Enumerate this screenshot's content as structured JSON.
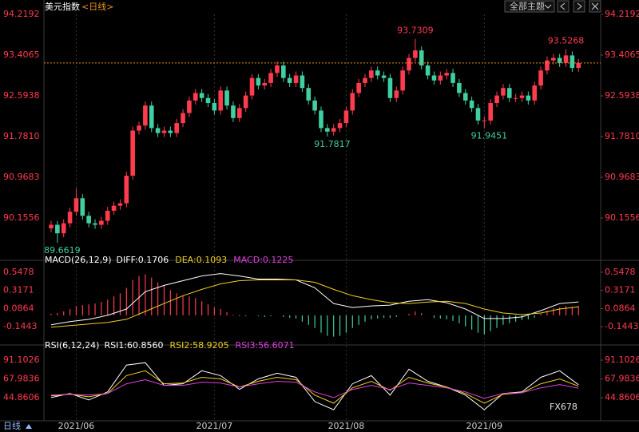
{
  "header": {
    "title": "美元指数",
    "period": "<日线>",
    "theme_button": "全部主题"
  },
  "footer": {
    "period": "日线",
    "watermark": "FX678"
  },
  "chart_data": [
    {
      "type": "candlestick",
      "open": [
        89.95,
        90.02,
        89.85,
        90.05,
        90.28,
        90.55,
        90.2,
        90.05,
        90.02,
        90.1,
        90.3,
        90.4,
        90.45,
        91.0,
        91.9,
        92.0,
        92.4,
        91.95,
        91.85,
        91.9,
        91.85,
        92.05,
        92.25,
        92.5,
        92.65,
        92.55,
        92.45,
        92.3,
        92.7,
        92.4,
        92.15,
        92.35,
        92.6,
        92.95,
        92.8,
        92.85,
        93.05,
        93.2,
        92.95,
        92.85,
        93.0,
        92.75,
        92.5,
        92.3,
        91.95,
        91.88,
        91.95,
        92.05,
        92.3,
        92.65,
        92.85,
        92.95,
        93.1,
        93.0,
        92.95,
        92.55,
        92.7,
        93.1,
        93.35,
        93.5,
        93.2,
        93.0,
        92.9,
        93.0,
        93.05,
        92.85,
        92.65,
        92.5,
        92.35,
        92.1,
        92.1,
        92.45,
        92.6,
        92.75,
        92.55,
        92.55,
        92.6,
        92.5,
        92.8,
        93.1,
        93.3,
        93.35,
        93.25,
        93.4,
        93.15
      ],
      "high": [
        90.1,
        90.1,
        90.13,
        90.36,
        90.75,
        90.63,
        90.28,
        90.13,
        90.18,
        90.38,
        90.48,
        90.53,
        91.08,
        91.98,
        92.08,
        92.48,
        92.48,
        92.03,
        91.98,
        91.98,
        92.13,
        92.33,
        92.58,
        92.73,
        92.73,
        92.63,
        92.53,
        92.78,
        92.78,
        92.48,
        92.43,
        92.68,
        93.03,
        93.03,
        92.93,
        93.13,
        93.28,
        93.28,
        93.03,
        93.08,
        93.08,
        92.83,
        92.58,
        92.38,
        92.03,
        92.03,
        92.13,
        92.38,
        92.73,
        92.93,
        93.03,
        93.18,
        93.18,
        93.08,
        93.03,
        92.78,
        93.18,
        93.43,
        93.7309,
        93.58,
        93.28,
        93.08,
        93.08,
        93.13,
        93.13,
        92.93,
        92.73,
        92.58,
        92.43,
        92.18,
        92.53,
        92.68,
        92.83,
        92.83,
        92.63,
        92.68,
        92.68,
        92.88,
        93.18,
        93.38,
        93.43,
        93.43,
        93.5268,
        93.48,
        93.33
      ],
      "low": [
        89.87,
        89.6619,
        89.77,
        89.97,
        90.2,
        90.12,
        89.97,
        89.94,
        89.94,
        90.02,
        90.22,
        90.32,
        90.37,
        90.92,
        91.82,
        91.92,
        91.87,
        91.77,
        91.77,
        91.77,
        91.77,
        91.97,
        92.17,
        92.42,
        92.47,
        92.37,
        92.22,
        92.22,
        92.32,
        92.07,
        92.07,
        92.27,
        92.52,
        92.72,
        92.72,
        92.77,
        92.97,
        92.87,
        92.77,
        92.77,
        92.67,
        92.42,
        92.22,
        91.87,
        91.7817,
        91.8,
        91.87,
        91.97,
        92.22,
        92.57,
        92.77,
        92.87,
        92.92,
        92.87,
        92.47,
        92.47,
        92.62,
        93.02,
        93.27,
        93.12,
        92.92,
        92.82,
        92.82,
        92.92,
        92.77,
        92.57,
        92.42,
        92.27,
        92.02,
        91.9451,
        92.02,
        92.37,
        92.52,
        92.47,
        92.47,
        92.47,
        92.42,
        92.42,
        92.72,
        93.02,
        93.22,
        93.17,
        93.17,
        93.07,
        93.07
      ],
      "close": [
        90.02,
        89.85,
        90.05,
        90.28,
        90.55,
        90.2,
        90.05,
        90.02,
        90.1,
        90.3,
        90.4,
        90.45,
        91.0,
        91.9,
        92.0,
        92.4,
        91.95,
        91.85,
        91.9,
        91.85,
        92.05,
        92.25,
        92.5,
        92.65,
        92.55,
        92.45,
        92.3,
        92.7,
        92.4,
        92.15,
        92.35,
        92.6,
        92.95,
        92.8,
        92.85,
        93.05,
        93.2,
        92.95,
        92.85,
        93.0,
        92.75,
        92.5,
        92.3,
        91.95,
        91.88,
        91.95,
        92.05,
        92.3,
        92.65,
        92.85,
        92.95,
        93.1,
        93.0,
        92.95,
        92.55,
        92.7,
        93.1,
        93.35,
        93.5,
        93.2,
        93.0,
        92.9,
        93.0,
        93.05,
        92.85,
        92.65,
        92.5,
        92.35,
        92.1,
        92.1,
        92.45,
        92.6,
        92.75,
        92.55,
        92.55,
        92.6,
        92.5,
        92.8,
        93.1,
        93.3,
        93.35,
        93.25,
        93.4,
        93.15,
        93.25
      ],
      "up_color": "#ff3b4e",
      "down_color": "#3fcfa0",
      "ylim": [
        89.4066,
        94.3467
      ],
      "yticks": [
        94.2192,
        93.4065,
        92.5938,
        {
          "value": 91.781,
          "label": "91.7810"
        },
        90.9683,
        90.1556
      ],
      "tick_color": "#ff3b4e",
      "last_line_color": "#e8901c",
      "x_labels": [
        {
          "index": 4,
          "label": "2021/06"
        },
        {
          "index": 26,
          "label": "2021/07"
        },
        {
          "index": 47,
          "label": "2021/08"
        },
        {
          "index": 69,
          "label": "2021/09"
        }
      ]
    },
    {
      "type": "macd",
      "legend_title": "MACD(26,12,9)",
      "ylim": [
        -0.335,
        0.658
      ],
      "yticks": [
        0.5478,
        0.3171,
        0.0864,
        -0.1443
      ],
      "tick_color": "#ff3b4e",
      "x": [
        0,
        3,
        6,
        9,
        12,
        15,
        18,
        21,
        24,
        27,
        30,
        33,
        36,
        39,
        42,
        45,
        48,
        51,
        54,
        57,
        60,
        63,
        66,
        69,
        72,
        75,
        78,
        81,
        84
      ],
      "series": [
        {
          "name": "DIFF",
          "label": "DIFF:0.1706",
          "color": "#ffffff",
          "values": [
            -0.12,
            -0.08,
            -0.05,
            0.0,
            0.08,
            0.3,
            0.38,
            0.44,
            0.5,
            0.53,
            0.5,
            0.46,
            0.46,
            0.45,
            0.35,
            0.15,
            0.1,
            0.12,
            0.13,
            0.18,
            0.2,
            0.16,
            0.08,
            -0.04,
            -0.04,
            -0.02,
            0.06,
            0.15,
            0.1706
          ]
        },
        {
          "name": "DEA",
          "label": "DEA:0.1093",
          "color": "#f0d020",
          "values": [
            -0.15,
            -0.13,
            -0.11,
            -0.09,
            -0.05,
            0.05,
            0.15,
            0.25,
            0.33,
            0.4,
            0.44,
            0.45,
            0.45,
            0.45,
            0.42,
            0.33,
            0.25,
            0.2,
            0.16,
            0.15,
            0.17,
            0.18,
            0.15,
            0.08,
            0.03,
            0.01,
            0.03,
            0.08,
            0.1093
          ]
        }
      ],
      "histogram": {
        "name": "MACD",
        "label": "MACD:0.1225",
        "color": "#e040e0",
        "up_color": "#ff3b4e",
        "down_color": "#3fcfa0",
        "values": [
          0.02,
          0.03,
          0.05,
          0.08,
          0.12,
          0.13,
          0.14,
          0.15,
          0.17,
          0.2,
          0.24,
          0.28,
          0.35,
          0.45,
          0.5,
          0.52,
          0.48,
          0.42,
          0.38,
          0.32,
          0.28,
          0.25,
          0.24,
          0.22,
          0.18,
          0.14,
          0.1,
          0.08,
          0.04,
          0.01,
          -0.01,
          -0.01,
          0.0,
          -0.01,
          -0.02,
          -0.01,
          0.0,
          -0.02,
          -0.03,
          -0.04,
          -0.08,
          -0.12,
          -0.16,
          -0.22,
          -0.26,
          -0.27,
          -0.26,
          -0.22,
          -0.16,
          -0.12,
          -0.08,
          -0.05,
          -0.04,
          -0.03,
          -0.03,
          -0.02,
          0.0,
          0.02,
          0.05,
          0.03,
          0.0,
          -0.03,
          -0.04,
          -0.05,
          -0.07,
          -0.1,
          -0.14,
          -0.18,
          -0.22,
          -0.24,
          -0.2,
          -0.16,
          -0.12,
          -0.1,
          -0.08,
          -0.06,
          -0.05,
          -0.03,
          0.02,
          0.06,
          0.09,
          0.1,
          0.12,
          0.11,
          0.1225
        ]
      }
    },
    {
      "type": "rsi",
      "legend_title": "RSI(6,12,24)",
      "ylim": [
        18.3,
        104.9
      ],
      "yticks": [
        91.1026,
        67.9836,
        44.8606
      ],
      "tick_color": "#ff3b4e",
      "x": [
        0,
        3,
        6,
        9,
        12,
        15,
        18,
        21,
        24,
        27,
        30,
        33,
        36,
        39,
        42,
        45,
        48,
        51,
        54,
        57,
        60,
        63,
        66,
        69,
        72,
        75,
        78,
        81,
        84
      ],
      "series": [
        {
          "name": "RSI1",
          "label": "RSI1:60.8560",
          "color": "#ffffff",
          "values": [
            45,
            50,
            42,
            52,
            85,
            88,
            60,
            62,
            78,
            72,
            55,
            68,
            75,
            70,
            40,
            30,
            62,
            72,
            48,
            80,
            65,
            58,
            48,
            30,
            50,
            52,
            70,
            78,
            60.856
          ]
        },
        {
          "name": "RSI2",
          "label": "RSI2:58.9205",
          "color": "#f0d020",
          "values": [
            47,
            49,
            46,
            50,
            72,
            78,
            62,
            63,
            70,
            68,
            58,
            65,
            70,
            67,
            48,
            38,
            57,
            65,
            54,
            70,
            63,
            58,
            50,
            38,
            49,
            51,
            62,
            68,
            58.9205
          ]
        },
        {
          "name": "RSI3",
          "label": "RSI3:56.6071",
          "color": "#e040e0",
          "values": [
            48,
            49,
            48,
            50,
            62,
            67,
            60,
            60,
            64,
            63,
            58,
            62,
            65,
            64,
            52,
            45,
            55,
            60,
            55,
            63,
            60,
            57,
            52,
            44,
            50,
            51,
            57,
            61,
            56.6071
          ]
        }
      ]
    }
  ]
}
